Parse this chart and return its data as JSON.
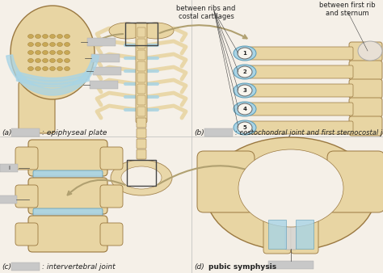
{
  "bg_color": "#f5f0e8",
  "bone_color": "#e8d5a3",
  "bone_dark": "#c8a860",
  "bone_edge": "#9a7840",
  "cart_color": "#a8d4e6",
  "cart_edge": "#5a9ab5",
  "arrow_color": "#b0a070",
  "text_color": "#222222",
  "gray_box_color": "#c8c8c8",
  "gray_box2_color": "#d8d8d8",
  "white_color": "#f8f5ee",
  "label_a": "(a)",
  "label_b": "(b)",
  "label_c": "(c)",
  "label_d": "(d)",
  "caption_a": ": epiphyseal plate",
  "caption_b": ": costochondral joint and first sternocostal joint",
  "caption_c": ": intervertebral joint",
  "caption_d": "pubic symphysis",
  "annot_left": "between ribs and\ncostal cartilages",
  "annot_right": "between first rib\nand sternum",
  "rib_nums": [
    "1",
    "2",
    "3",
    "4",
    "5"
  ],
  "divider_color": "#bbbbbb",
  "fs_caption": 6.5,
  "fs_small": 5.5,
  "fs_annot": 6.0
}
